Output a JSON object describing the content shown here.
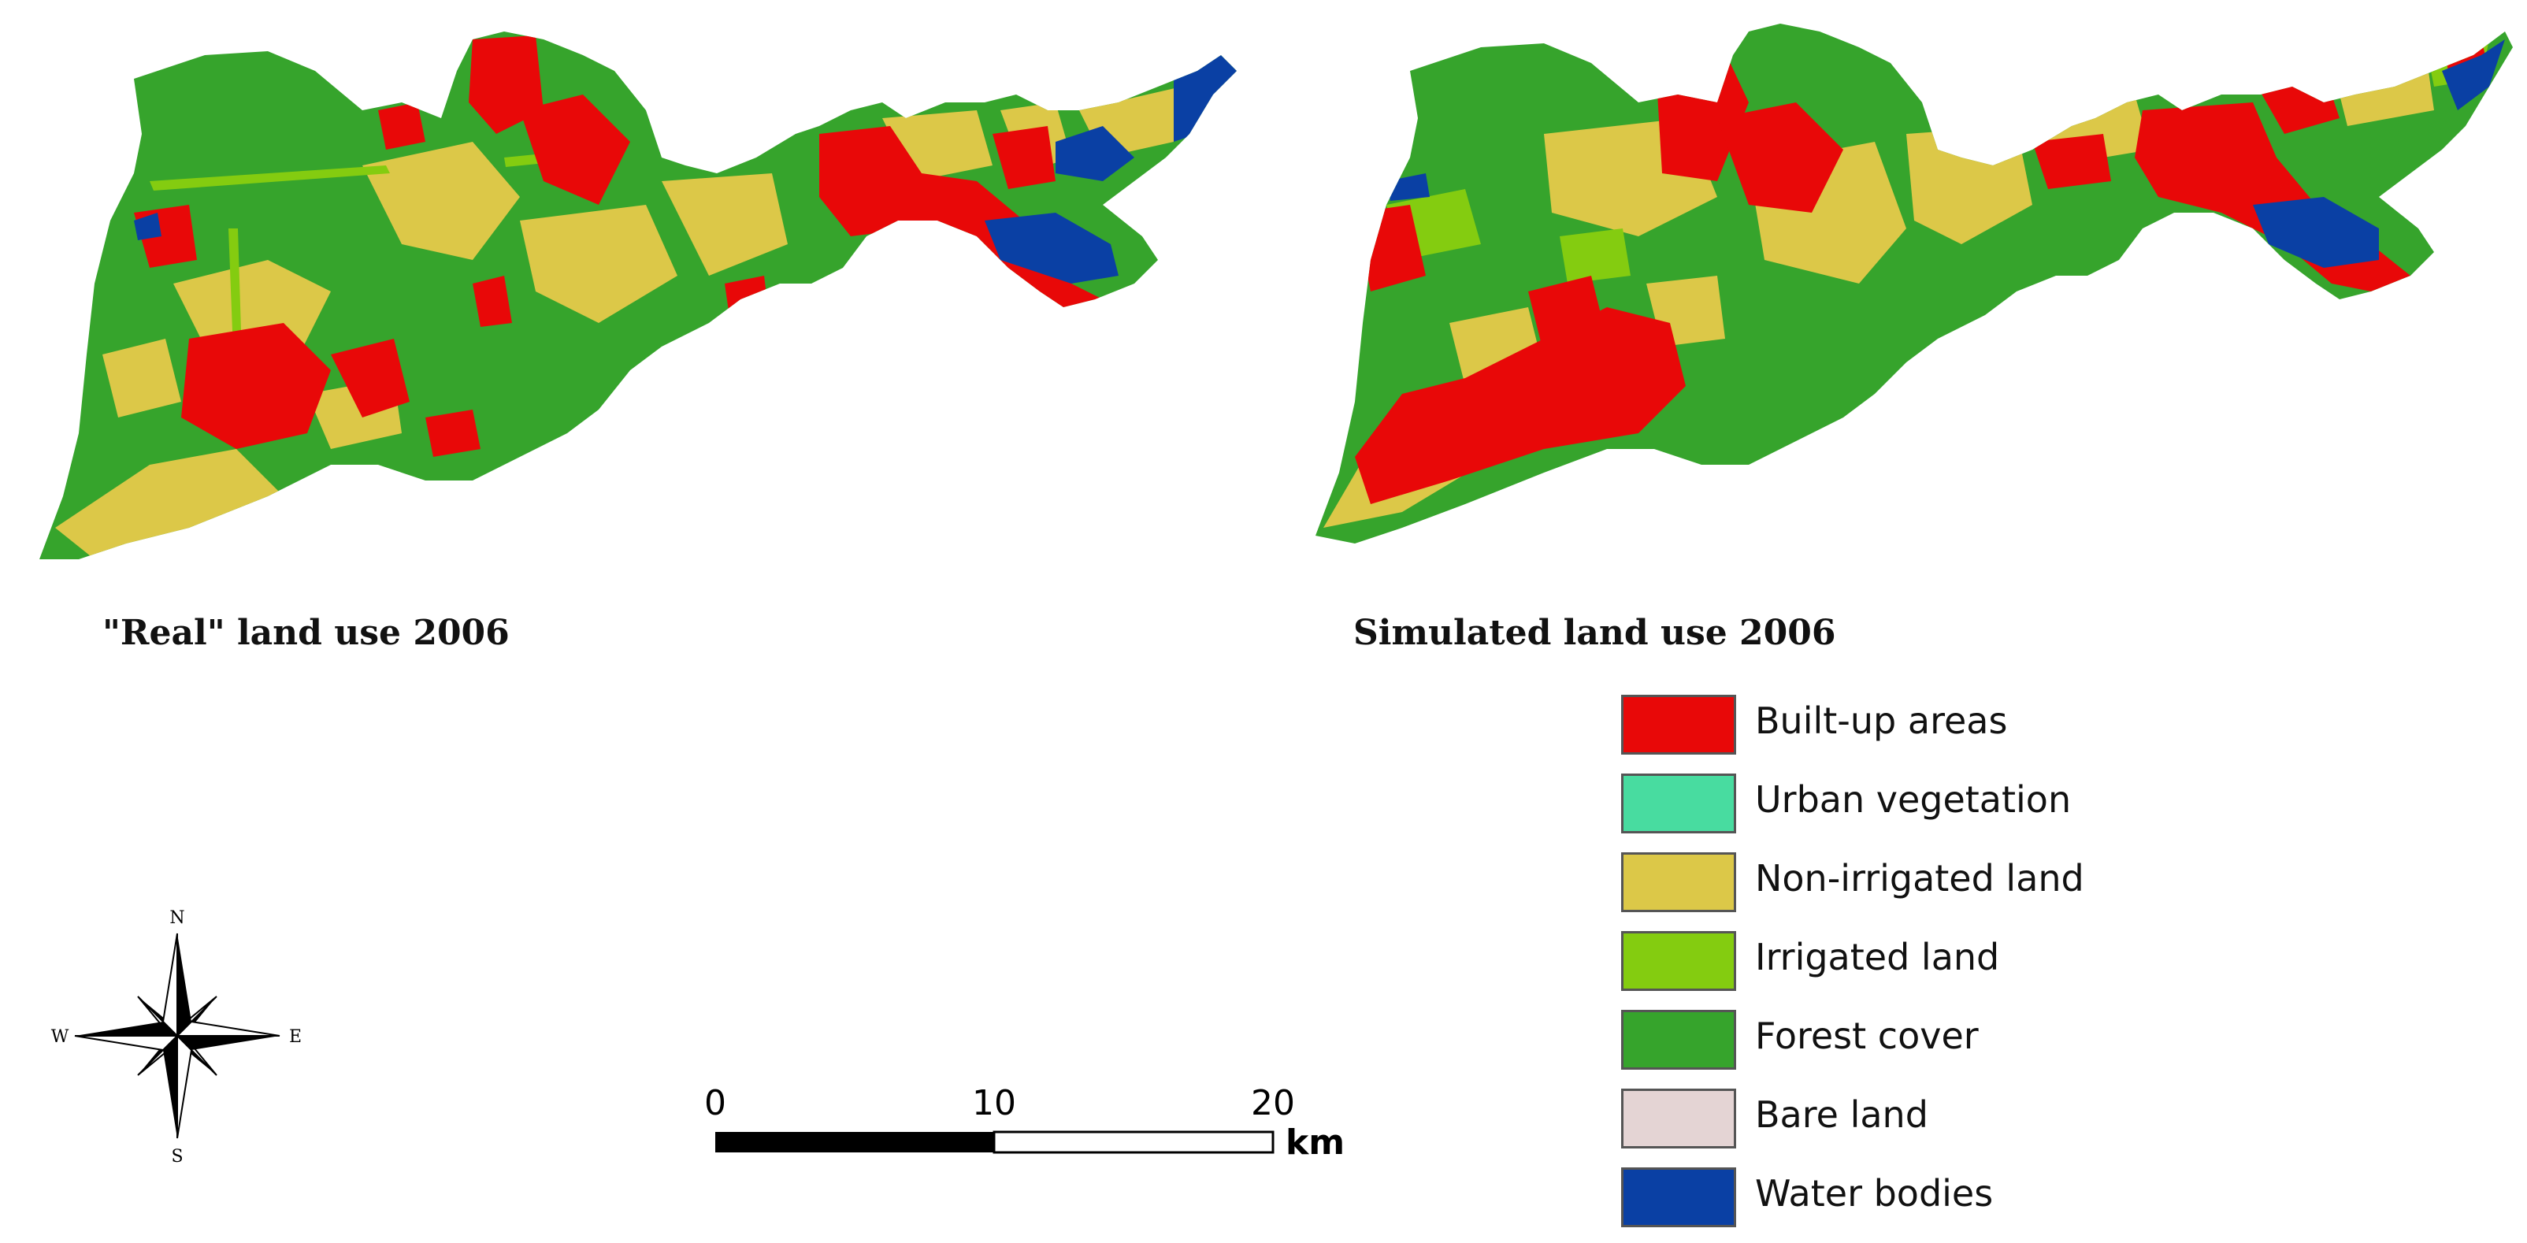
{
  "maps": [
    {
      "caption": "\"Real\" land use 2006"
    },
    {
      "caption": "Simulated land use 2006"
    }
  ],
  "legend": {
    "items": [
      {
        "label": "Built-up areas",
        "color": "#e80808"
      },
      {
        "label": "Urban vegetation",
        "color": "#48dca0"
      },
      {
        "label": "Non-irrigated land",
        "color": "#dcc848"
      },
      {
        "label": "Irrigated land",
        "color": "#84cc10"
      },
      {
        "label": "Forest cover",
        "color": "#36a42c"
      },
      {
        "label": "Bare land",
        "color": "#e4d4d4"
      },
      {
        "label": "Water bodies",
        "color": "#0a40a4"
      }
    ]
  },
  "compass": {
    "n": "N",
    "s": "S",
    "e": "E",
    "w": "W"
  },
  "scalebar": {
    "ticks": [
      "0",
      "10",
      "20"
    ],
    "unit": "km"
  }
}
